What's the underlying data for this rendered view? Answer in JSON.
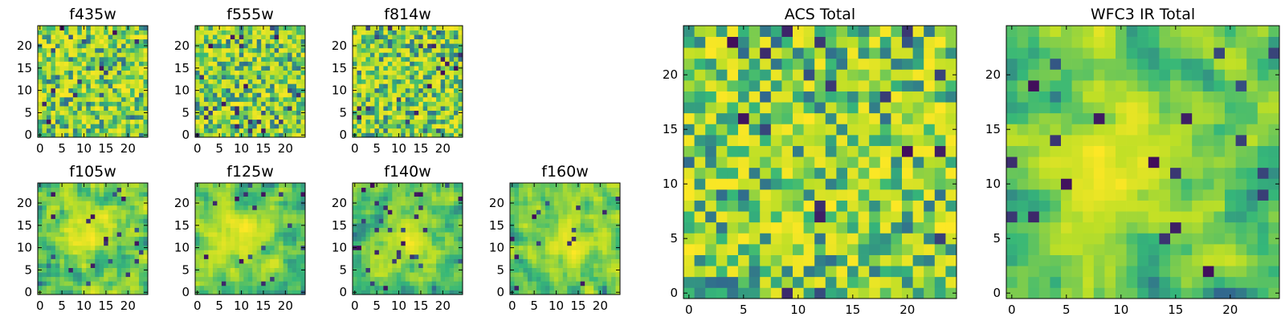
{
  "figure": {
    "colormap_name": "viridis",
    "colormap_stops": [
      "#440154",
      "#31688e",
      "#35b779",
      "#bddf26",
      "#fde725"
    ]
  },
  "chart_data": [
    {
      "type": "heatmap",
      "title": "f435w",
      "grid_size": [
        25,
        25
      ],
      "pattern": "noise",
      "seed": 11,
      "xticks": [
        0,
        5,
        10,
        15,
        20
      ],
      "yticks": [
        0,
        5,
        10,
        15,
        20
      ],
      "xlim": [
        -0.5,
        24.5
      ],
      "ylim": [
        -0.5,
        24.5
      ],
      "value_range": [
        0,
        1
      ],
      "grid": false
    },
    {
      "type": "heatmap",
      "title": "f555w",
      "grid_size": [
        25,
        25
      ],
      "pattern": "noise",
      "seed": 23,
      "xticks": [
        0,
        5,
        10,
        15,
        20
      ],
      "yticks": [
        0,
        5,
        10,
        15,
        20
      ],
      "xlim": [
        -0.5,
        24.5
      ],
      "ylim": [
        -0.5,
        24.5
      ],
      "value_range": [
        0,
        1
      ],
      "grid": false
    },
    {
      "type": "heatmap",
      "title": "f814w",
      "grid_size": [
        25,
        25
      ],
      "pattern": "noise",
      "seed": 37,
      "xticks": [
        0,
        5,
        10,
        15,
        20
      ],
      "yticks": [
        0,
        5,
        10,
        15,
        20
      ],
      "xlim": [
        -0.5,
        24.5
      ],
      "ylim": [
        -0.5,
        24.5
      ],
      "value_range": [
        0,
        1
      ],
      "grid": false
    },
    {
      "type": "heatmap",
      "title": "f105w",
      "grid_size": [
        25,
        25
      ],
      "pattern": "smooth",
      "seed": 41,
      "peak": [
        11,
        14
      ],
      "xticks": [
        0,
        5,
        10,
        15,
        20
      ],
      "yticks": [
        0,
        5,
        10,
        15,
        20
      ],
      "xlim": [
        -0.5,
        24.5
      ],
      "ylim": [
        -0.5,
        24.5
      ],
      "value_range": [
        0,
        1
      ],
      "grid": false
    },
    {
      "type": "heatmap",
      "title": "f125w",
      "grid_size": [
        25,
        25
      ],
      "pattern": "smooth",
      "seed": 53,
      "peak": [
        10,
        13
      ],
      "xticks": [
        0,
        5,
        10,
        15,
        20
      ],
      "yticks": [
        0,
        5,
        10,
        15,
        20
      ],
      "xlim": [
        -0.5,
        24.5
      ],
      "ylim": [
        -0.5,
        24.5
      ],
      "value_range": [
        0,
        1
      ],
      "grid": false
    },
    {
      "type": "heatmap",
      "title": "f140w",
      "grid_size": [
        25,
        25
      ],
      "pattern": "smooth",
      "seed": 67,
      "peak": [
        12,
        12
      ],
      "xticks": [
        0,
        5,
        10,
        15,
        20
      ],
      "yticks": [
        0,
        5,
        10,
        15,
        20
      ],
      "xlim": [
        -0.5,
        24.5
      ],
      "ylim": [
        -0.5,
        24.5
      ],
      "value_range": [
        0,
        1
      ],
      "grid": false
    },
    {
      "type": "heatmap",
      "title": "f160w",
      "grid_size": [
        25,
        25
      ],
      "pattern": "smooth",
      "seed": 79,
      "peak": [
        13,
        11
      ],
      "xticks": [
        0,
        5,
        10,
        15,
        20
      ],
      "yticks": [
        0,
        5,
        10,
        15,
        20
      ],
      "xlim": [
        -0.5,
        24.5
      ],
      "ylim": [
        -0.5,
        24.5
      ],
      "value_range": [
        0,
        1
      ],
      "grid": false
    },
    {
      "type": "heatmap",
      "title": "ACS Total",
      "grid_size": [
        25,
        25
      ],
      "pattern": "noise",
      "seed": 97,
      "xticks": [
        0,
        5,
        10,
        15,
        20
      ],
      "yticks": [
        0,
        5,
        10,
        15,
        20
      ],
      "xlim": [
        -0.5,
        24.5
      ],
      "ylim": [
        -0.5,
        24.5
      ],
      "value_range": [
        0,
        1
      ],
      "grid": false
    },
    {
      "type": "heatmap",
      "title": "WFC3 IR Total",
      "grid_size": [
        25,
        25
      ],
      "pattern": "smooth",
      "seed": 101,
      "peak": [
        11,
        12
      ],
      "xticks": [
        0,
        5,
        10,
        15,
        20
      ],
      "yticks": [
        0,
        5,
        10,
        15,
        20
      ],
      "xlim": [
        -0.5,
        24.5
      ],
      "ylim": [
        -0.5,
        24.5
      ],
      "value_range": [
        0,
        1
      ],
      "grid": false
    }
  ]
}
